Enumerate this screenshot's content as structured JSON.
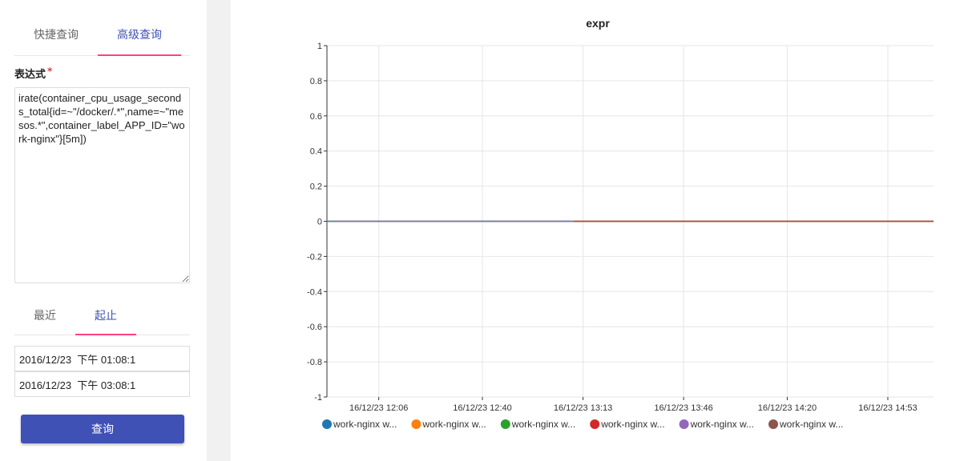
{
  "query_panel": {
    "tabs": [
      {
        "label": "快捷查询",
        "active": false
      },
      {
        "label": "高级查询",
        "active": true
      }
    ],
    "expression_label": "表达式",
    "required_mark": "*",
    "expression_value": "irate(container_cpu_usage_seconds_total{id=~\"/docker/.*\",name=~\"mesos.*\",container_label_APP_ID=\"work-nginx\"}[5m])",
    "time_tabs": [
      {
        "label": "最近",
        "active": false
      },
      {
        "label": "起止",
        "active": true
      }
    ],
    "start_time": "2016/12/23  下午 01:08:1",
    "end_time": "2016/12/23  下午 03:08:1",
    "query_button_label": "查询"
  },
  "colors": {
    "accent": "#3f51b5",
    "tab_indicator": "#ff4081",
    "grid": "#e6e6e6"
  },
  "chart_data": {
    "type": "line",
    "title": "expr",
    "xlabel": "",
    "ylabel": "",
    "ylim": [
      -1,
      1
    ],
    "yticks": [
      "1",
      "0.8",
      "0.6",
      "0.4",
      "0.2",
      "0",
      "-0.2",
      "-0.4",
      "-0.6",
      "-0.8",
      "-1"
    ],
    "xticks": [
      "16/12/23 12:06",
      "16/12/23 12:40",
      "16/12/23 13:13",
      "16/12/23 13:46",
      "16/12/23 14:20",
      "16/12/23 14:53"
    ],
    "grid": true,
    "legend_position": "bottom",
    "series": [
      {
        "name": "work-nginx w...",
        "color": "#1f77b4",
        "x_start": "16/12/23 11:49",
        "x_end": "16/12/23 13:10",
        "values": [
          0,
          0
        ]
      },
      {
        "name": "work-nginx w...",
        "color": "#ff7f0e",
        "x_start": "16/12/23 13:10",
        "x_end": "16/12/23 15:08",
        "values": [
          0,
          0
        ]
      },
      {
        "name": "work-nginx w...",
        "color": "#2ca02c",
        "x_start": "16/12/23 11:49",
        "x_end": "16/12/23 13:10",
        "values": [
          0,
          0
        ]
      },
      {
        "name": "work-nginx w...",
        "color": "#d62728",
        "x_start": "16/12/23 13:10",
        "x_end": "16/12/23 15:08",
        "values": [
          0,
          0
        ]
      },
      {
        "name": "work-nginx w...",
        "color": "#9467bd",
        "x_start": "16/12/23 11:49",
        "x_end": "16/12/23 13:10",
        "values": [
          0,
          0
        ]
      },
      {
        "name": "work-nginx w...",
        "color": "#8c564b",
        "x_start": "16/12/23 13:10",
        "x_end": "16/12/23 15:08",
        "values": [
          0,
          0
        ]
      }
    ]
  }
}
